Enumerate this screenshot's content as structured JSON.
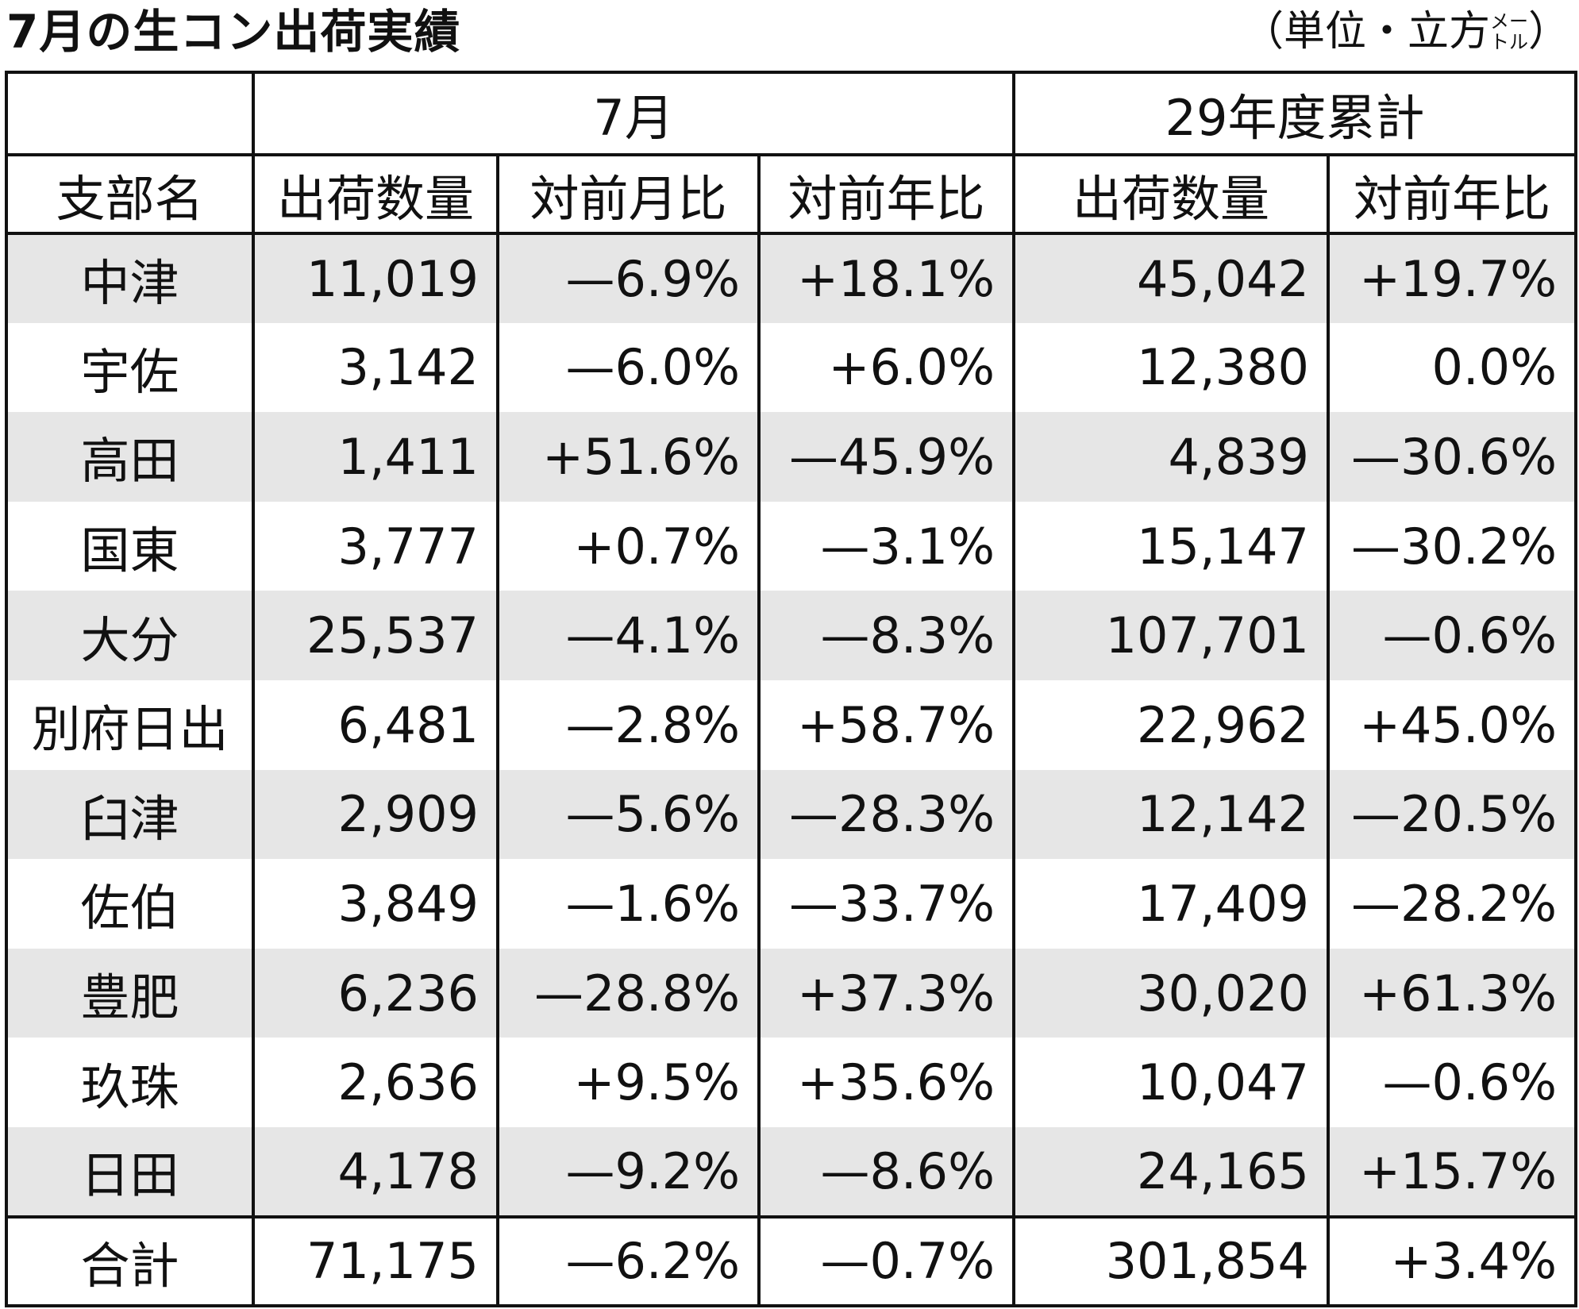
{
  "header": {
    "title": "7月の生コン出荷実績",
    "unit_prefix": "（単位・立方",
    "unit_small": [
      "メー",
      "トル"
    ],
    "unit_suffix": "）"
  },
  "table": {
    "group_headers": [
      "7月",
      "29年度累計"
    ],
    "columns": [
      "支部名",
      "出荷数量",
      "対前月比",
      "対前年比",
      "出荷数量",
      "対前年比"
    ],
    "rows": [
      [
        "中津",
        "11,019",
        "—6.9%",
        "+18.1%",
        "45,042",
        "+19.7%"
      ],
      [
        "宇佐",
        "3,142",
        "—6.0%",
        "+6.0%",
        "12,380",
        "0.0%"
      ],
      [
        "高田",
        "1,411",
        "+51.6%",
        "—45.9%",
        "4,839",
        "—30.6%"
      ],
      [
        "国東",
        "3,777",
        "+0.7%",
        "—3.1%",
        "15,147",
        "—30.2%"
      ],
      [
        "大分",
        "25,537",
        "—4.1%",
        "—8.3%",
        "107,701",
        "—0.6%"
      ],
      [
        "別府日出",
        "6,481",
        "—2.8%",
        "+58.7%",
        "22,962",
        "+45.0%"
      ],
      [
        "臼津",
        "2,909",
        "—5.6%",
        "—28.3%",
        "12,142",
        "—20.5%"
      ],
      [
        "佐伯",
        "3,849",
        "—1.6%",
        "—33.7%",
        "17,409",
        "—28.2%"
      ],
      [
        "豊肥",
        "6,236",
        "—28.8%",
        "+37.3%",
        "30,020",
        "+61.3%"
      ],
      [
        "玖珠",
        "2,636",
        "+9.5%",
        "+35.6%",
        "10,047",
        "—0.6%"
      ],
      [
        "日田",
        "4,178",
        "—9.2%",
        "—8.6%",
        "24,165",
        "+15.7%"
      ]
    ],
    "total": [
      "合計",
      "71,175",
      "—6.2%",
      "—0.7%",
      "301,854",
      "+3.4%"
    ]
  }
}
